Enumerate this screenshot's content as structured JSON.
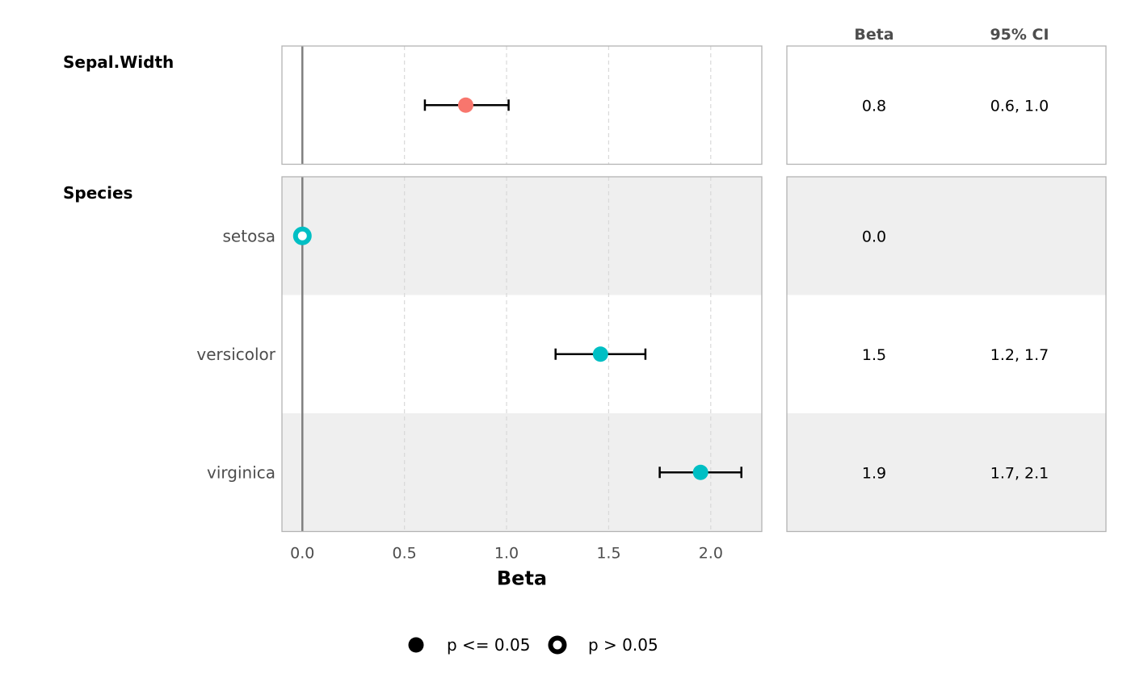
{
  "chart_data": {
    "type": "forest",
    "xlabel": "Beta",
    "xlim": [
      -0.1,
      2.25
    ],
    "xticks": [
      0.0,
      0.5,
      1.0,
      1.5,
      2.0
    ],
    "xtick_labels": [
      "0.0",
      "0.5",
      "1.0",
      "1.5",
      "2.0"
    ],
    "reference_line": 0,
    "grid": "vertical dashed",
    "table_headers": {
      "beta": "Beta",
      "ci": "95% CI"
    },
    "groups": [
      {
        "label": "Sepal.Width",
        "color": "#F8766D",
        "rows": [
          {
            "label": "",
            "estimate": 0.8,
            "ci_low": 0.6,
            "ci_high": 1.01,
            "beta_text": "0.8",
            "ci_text": "0.6, 1.0",
            "significant": true
          }
        ]
      },
      {
        "label": "Species",
        "color": "#00BFC4",
        "rows": [
          {
            "label": "setosa",
            "estimate": 0.0,
            "ci_low": null,
            "ci_high": null,
            "beta_text": "0.0",
            "ci_text": "",
            "significant": false
          },
          {
            "label": "versicolor",
            "estimate": 1.46,
            "ci_low": 1.24,
            "ci_high": 1.68,
            "beta_text": "1.5",
            "ci_text": "1.2, 1.7",
            "significant": true
          },
          {
            "label": "virginica",
            "estimate": 1.95,
            "ci_low": 1.75,
            "ci_high": 2.15,
            "beta_text": "1.9",
            "ci_text": "1.7, 2.1",
            "significant": true
          }
        ]
      }
    ],
    "legend": {
      "position": "bottom",
      "items": [
        {
          "label": "p <= 0.05",
          "shape": "filled-circle"
        },
        {
          "label": "p > 0.05",
          "shape": "open-circle"
        }
      ]
    }
  }
}
